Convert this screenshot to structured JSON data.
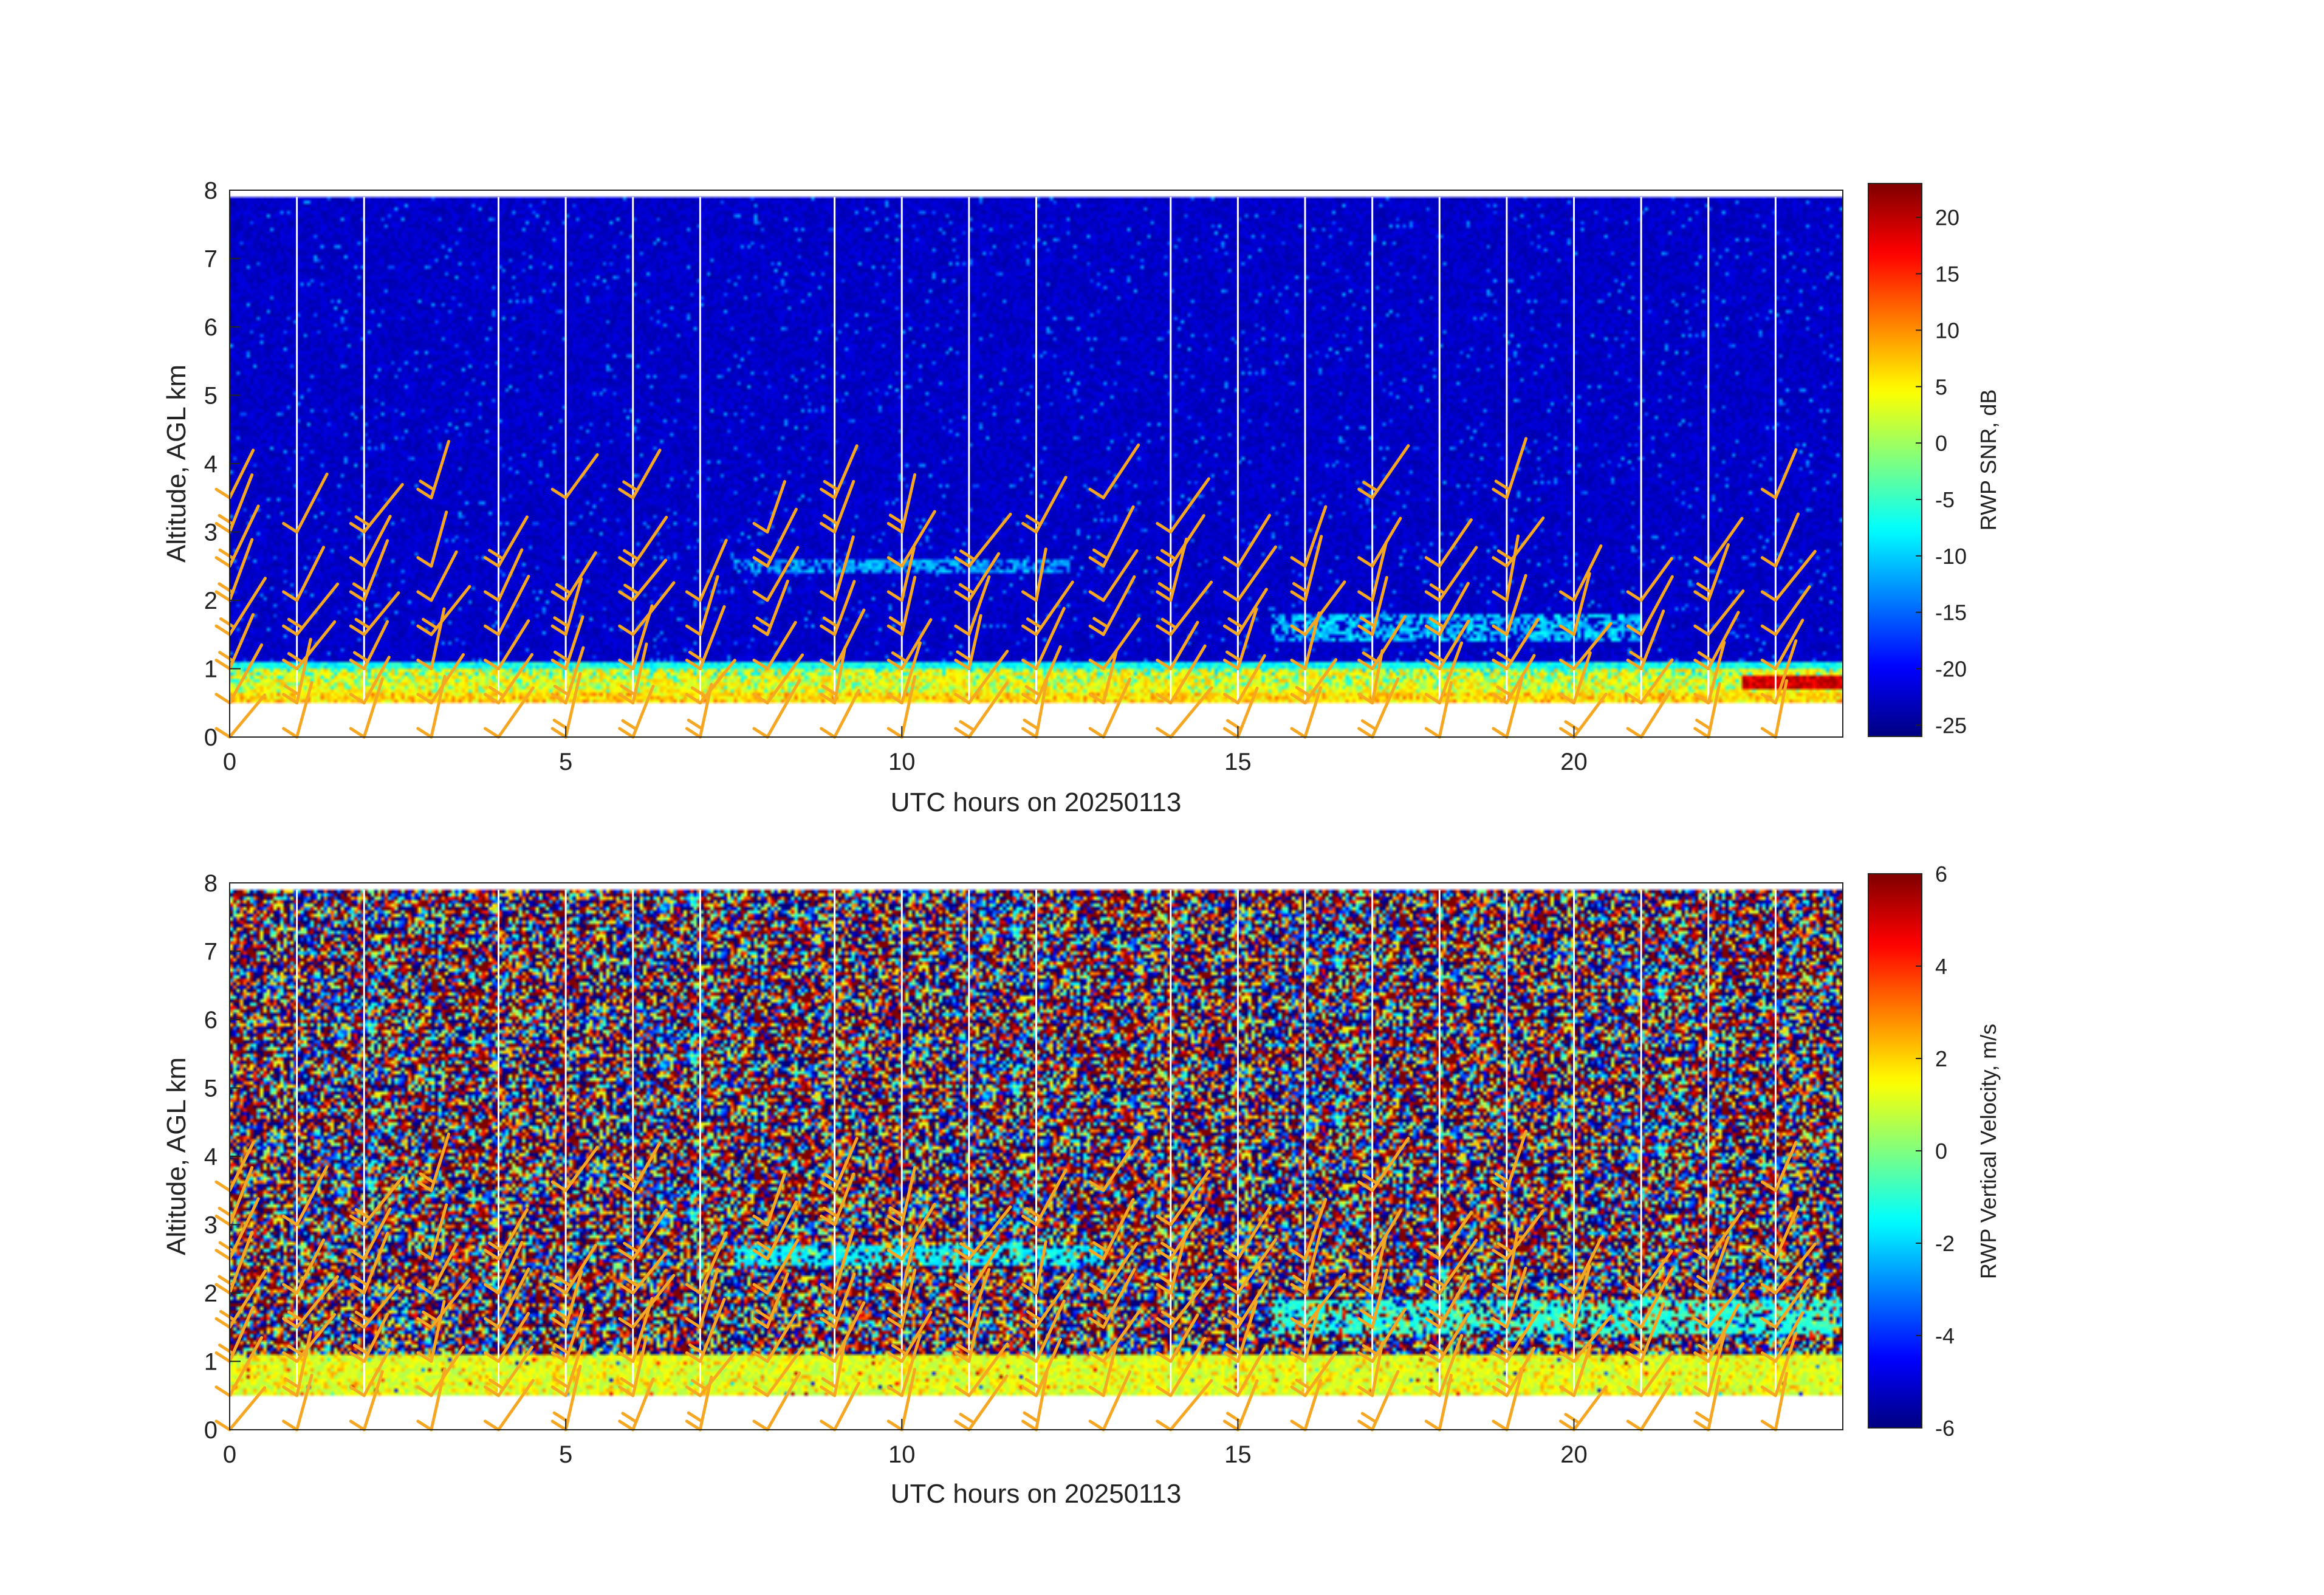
{
  "chart_data": [
    {
      "type": "heatmap",
      "xlabel": "UTC hours on 20250113",
      "ylabel": "Altitude, AGL km",
      "xlim": [
        0,
        24
      ],
      "ylim": [
        0,
        8
      ],
      "x_ticks": [
        "0",
        "5",
        "10",
        "15",
        "20"
      ],
      "y_ticks": [
        "0",
        "1",
        "2",
        "3",
        "4",
        "5",
        "6",
        "7",
        "8"
      ],
      "colorbar": {
        "label": "RWP SNR, dB",
        "range": [
          -26,
          23
        ],
        "ticks": [
          "20",
          "15",
          "10",
          "5",
          "0",
          "-5",
          "-10",
          "-15",
          "-20",
          "-25"
        ],
        "colormap": "jet"
      },
      "data_altitude_range_km": [
        0.5,
        7.9
      ],
      "features": [
        {
          "description": "boundary layer high SNR band",
          "x": [
            0,
            24
          ],
          "y": [
            0.5,
            1.0
          ],
          "value_dB": 5
        },
        {
          "description": "very high SNR near surface late in day",
          "x": [
            22.5,
            24
          ],
          "y": [
            0.7,
            0.9
          ],
          "value_dB": 20
        },
        {
          "description": "enhanced layer",
          "x": [
            7.5,
            12.5
          ],
          "y": [
            2.4,
            2.6
          ],
          "value_dB": -12
        },
        {
          "description": "enhanced layer",
          "x": [
            15.5,
            21
          ],
          "y": [
            1.4,
            1.8
          ],
          "value_dB": -10
        },
        {
          "description": "background noise",
          "x": [
            0,
            24
          ],
          "y": [
            1.2,
            7.9
          ],
          "value_dB": -24
        }
      ],
      "wind_barbs_color": "#f5a623",
      "gridlines_hours": [
        1,
        2,
        4,
        5,
        6,
        7,
        9,
        10,
        11,
        12,
        14,
        15,
        16,
        17,
        18,
        19,
        20,
        21,
        22,
        23
      ]
    },
    {
      "type": "heatmap",
      "xlabel": "UTC hours on 20250113",
      "ylabel": "Altitude, AGL km",
      "xlim": [
        0,
        24
      ],
      "ylim": [
        0,
        8
      ],
      "x_ticks": [
        "0",
        "5",
        "10",
        "15",
        "20"
      ],
      "y_ticks": [
        "0",
        "1",
        "2",
        "3",
        "4",
        "5",
        "6",
        "7",
        "8"
      ],
      "colorbar": {
        "label": "RWP Vertical Velocity, m/s",
        "range": [
          -6,
          6
        ],
        "ticks": [
          "6",
          "4",
          "2",
          "0",
          "-2",
          "-4",
          "-6"
        ],
        "colormap": "jet"
      },
      "data_altitude_range_km": [
        0.5,
        7.9
      ],
      "features": [
        {
          "description": "boundary layer near-zero velocity",
          "x": [
            0,
            24
          ],
          "y": [
            0.5,
            1.1
          ],
          "value_ms": 1
        },
        {
          "description": "coherent layer",
          "x": [
            7.5,
            13
          ],
          "y": [
            2.4,
            2.7
          ],
          "value_ms": -1.5
        },
        {
          "description": "coherent layer",
          "x": [
            15.5,
            24
          ],
          "y": [
            1.4,
            1.9
          ],
          "value_ms": -1
        },
        {
          "description": "noise above",
          "x": [
            0,
            24
          ],
          "y": [
            2,
            7.9
          ],
          "value_ms": "random ±6"
        }
      ],
      "wind_barbs_color": "#f5a623"
    }
  ],
  "wind_barbs": {
    "description": "identical wind barb overlay on both panels",
    "times_hours": [
      0,
      1,
      2,
      3,
      4,
      5,
      6,
      7,
      8,
      9,
      10,
      11,
      12,
      13,
      14,
      15,
      16,
      17,
      18,
      19,
      20,
      21,
      22,
      23
    ],
    "altitudes_km": [
      0,
      0.5,
      1,
      1.5,
      2,
      2.5,
      3,
      3.5
    ]
  },
  "colors": {
    "barb": "#f5a623",
    "grid": "#ffffff",
    "axis": "#222222"
  }
}
